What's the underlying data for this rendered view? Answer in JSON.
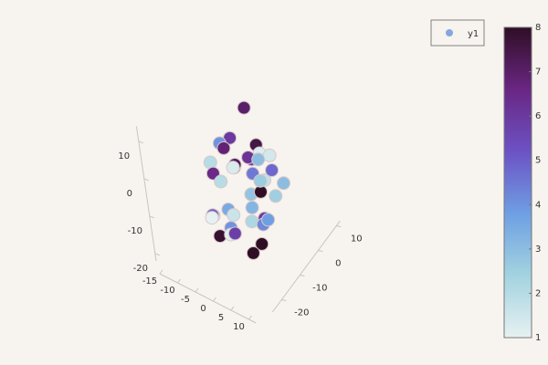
{
  "chart_data": {
    "type": "scatter3d",
    "series": [
      {
        "name": "y1",
        "color": "#85a6df",
        "x": [
          -6,
          -3,
          0,
          2,
          4,
          6,
          8,
          -8,
          -5,
          1,
          3,
          5,
          7,
          9,
          -4,
          -2,
          0,
          2,
          4,
          6,
          -7,
          -1,
          3,
          5,
          8,
          -3,
          1,
          4,
          6,
          2,
          -5,
          0,
          7,
          3,
          -2,
          5,
          9,
          1,
          -6,
          4
        ],
        "y": [
          -10,
          -2,
          5,
          -15,
          0,
          -8,
          3,
          -5,
          -12,
          -18,
          2,
          -6,
          -14,
          -3,
          8,
          -9,
          -20,
          1,
          -4,
          -11,
          -1,
          -16,
          6,
          -7,
          -13,
          4,
          -8,
          -2,
          -19,
          0,
          -6,
          -10,
          -5,
          -17,
          -3,
          3,
          -9,
          -12,
          2,
          -1
        ],
        "z": [
          -12,
          5,
          0,
          -8,
          3,
          -15,
          -5,
          -2,
          -10,
          8,
          -6,
          2,
          -13,
          -4,
          6,
          -9,
          -3,
          -16,
          4,
          -7,
          1,
          -11,
          -2,
          7,
          -1,
          -14,
          3,
          -6,
          0,
          -17,
          -5,
          9,
          -10,
          -8,
          -1,
          -3,
          4,
          -12,
          -7,
          2
        ],
        "c": [
          1.5,
          6,
          7.5,
          4,
          1.2,
          8,
          3,
          2,
          5,
          6.5,
          1.8,
          4.5,
          8,
          2.5,
          7,
          3.5,
          1,
          6,
          5.5,
          2.2,
          4,
          7.8,
          1.4,
          6.2,
          3.2,
          2.8,
          5,
          8,
          1.6,
          4.2,
          2,
          6.8,
          3.8,
          1.1,
          7.2,
          4.8,
          2.6,
          5.8,
          1.3,
          3
        ]
      }
    ],
    "xlim": [
      -15,
      12
    ],
    "ylim": [
      -25,
      12
    ],
    "zlim": [
      -22,
      14
    ],
    "xticks": [
      -15,
      -10,
      -5,
      0,
      5,
      10
    ],
    "yticks": [
      -20,
      -10,
      0,
      10
    ],
    "zticks": [
      -20,
      -10,
      0,
      10
    ],
    "colorbar": {
      "lim": [
        1,
        8
      ],
      "ticks": [
        1,
        2,
        3,
        4,
        5,
        6,
        7,
        8
      ],
      "colorscale": [
        "#e6f1f1",
        "#a3d3e0",
        "#6e9fe3",
        "#6c52c4",
        "#6a2683",
        "#2f0e25"
      ]
    }
  }
}
